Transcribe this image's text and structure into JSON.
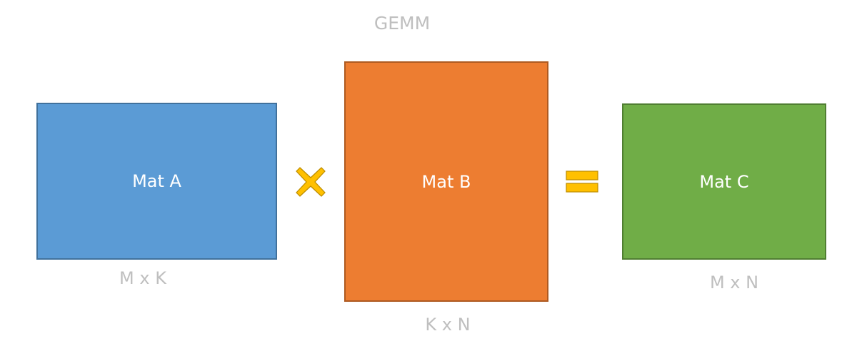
{
  "title": "GEMM",
  "operators": {
    "times": "multiply-x-icon",
    "equals": "equals-icon"
  },
  "matrices": [
    {
      "label": "Mat A",
      "dims": "M x K",
      "fill": "#5b9bd5",
      "border": "#41719c"
    },
    {
      "label": "Mat B",
      "dims": "K x N",
      "fill": "#ed7d31",
      "border": "#ae5a21"
    },
    {
      "label": "Mat C",
      "dims": "M x N",
      "fill": "#70ad47",
      "border": "#507e32"
    }
  ],
  "colors": {
    "operator_fill": "#ffc000",
    "operator_stroke": "#bc8c00",
    "caption_text": "#bfbfbf"
  }
}
